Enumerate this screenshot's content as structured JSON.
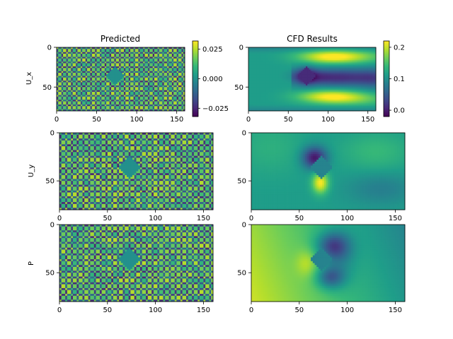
{
  "figure": {
    "titles": {
      "left": "Predicted",
      "right": "CFD Results"
    },
    "row_labels": [
      "U_x",
      "U_y",
      "P"
    ]
  },
  "colormap": "viridis",
  "chart_data": [
    {
      "type": "heatmap",
      "row": "U_x",
      "column": "Predicted",
      "x_ticks": [
        0,
        50,
        100,
        150
      ],
      "y_ticks": [
        0,
        50
      ],
      "xlim": [
        0,
        160
      ],
      "ylim": [
        80,
        0
      ],
      "pattern": "fine checkerboard noise with a flat diamond obstacle near x=73, y=36",
      "colorbar": {
        "ticks": [
          "0.025",
          "0.000",
          "−0.025"
        ],
        "range": [
          -0.032,
          0.032
        ]
      }
    },
    {
      "type": "heatmap",
      "row": "U_x",
      "column": "CFD Results",
      "x_ticks": [
        0,
        50,
        100,
        150
      ],
      "y_ticks": [
        0,
        50
      ],
      "xlim": [
        0,
        160
      ],
      "ylim": [
        80,
        0
      ],
      "pattern": "flow around diamond obstacle with high-velocity bands above and below and low-velocity wake",
      "colorbar": {
        "ticks": [
          "0.2",
          "0.1",
          "0.0"
        ],
        "range": [
          -0.02,
          0.22
        ]
      }
    },
    {
      "type": "heatmap",
      "row": "U_y",
      "column": "Predicted",
      "x_ticks": [
        0,
        50,
        100,
        150
      ],
      "y_ticks": [
        0,
        50
      ],
      "xlim": [
        0,
        160
      ],
      "ylim": [
        80,
        0
      ],
      "pattern": "fine checkerboard noise with a flat diamond obstacle"
    },
    {
      "type": "heatmap",
      "row": "U_y",
      "column": "CFD Results",
      "x_ticks": [
        0,
        50,
        100,
        150
      ],
      "y_ticks": [
        0,
        50
      ],
      "xlim": [
        0,
        160
      ],
      "ylim": [
        80,
        0
      ],
      "pattern": "dark lobe upper-left of obstacle, bright lobe lower-right"
    },
    {
      "type": "heatmap",
      "row": "P",
      "column": "Predicted",
      "x_ticks": [
        0,
        50,
        100,
        150
      ],
      "y_ticks": [
        0,
        50
      ],
      "xlim": [
        0,
        160
      ],
      "ylim": [
        80,
        0
      ],
      "pattern": "fine checkerboard noise with a flat diamond obstacle"
    },
    {
      "type": "heatmap",
      "row": "P",
      "column": "CFD Results",
      "x_ticks": [
        0,
        50,
        100,
        150
      ],
      "y_ticks": [
        0,
        50
      ],
      "xlim": [
        0,
        160
      ],
      "ylim": [
        80,
        0
      ],
      "pattern": "high pressure upstream (left) decreasing downstream, low pressure behind obstacle"
    }
  ]
}
